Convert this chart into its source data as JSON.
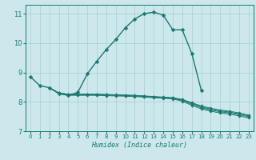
{
  "xlabel": "Humidex (Indice chaleur)",
  "xlim": [
    -0.5,
    23.5
  ],
  "ylim": [
    7.0,
    11.3
  ],
  "yticks": [
    7,
    8,
    9,
    10,
    11
  ],
  "xticks": [
    0,
    1,
    2,
    3,
    4,
    5,
    6,
    7,
    8,
    9,
    10,
    11,
    12,
    13,
    14,
    15,
    16,
    17,
    18,
    19,
    20,
    21,
    22,
    23
  ],
  "background_color": "#cce8ec",
  "grid_color": "#aacccc",
  "line_color": "#1a7a6e",
  "lines": [
    {
      "x": [
        0,
        1,
        2,
        3,
        4,
        5,
        6,
        7,
        8,
        9,
        10,
        11,
        12,
        13,
        14,
        15,
        16,
        17,
        18
      ],
      "y": [
        8.85,
        8.55,
        8.48,
        8.28,
        8.22,
        8.32,
        8.95,
        9.38,
        9.78,
        10.12,
        10.52,
        10.82,
        11.0,
        11.05,
        10.95,
        10.45,
        10.45,
        9.65,
        8.4
      ]
    },
    {
      "x": [
        2,
        3,
        4,
        5,
        6,
        7,
        8,
        9,
        10,
        11,
        12,
        13,
        14,
        15,
        16,
        17,
        18,
        19,
        20,
        21,
        22,
        23
      ],
      "y": [
        8.48,
        8.28,
        8.22,
        8.22,
        8.22,
        8.22,
        8.21,
        8.2,
        8.19,
        8.18,
        8.16,
        8.14,
        8.12,
        8.1,
        8.02,
        7.88,
        7.76,
        7.68,
        7.62,
        7.58,
        7.52,
        7.45
      ]
    },
    {
      "x": [
        2,
        3,
        4,
        5,
        6,
        7,
        8,
        9,
        10,
        11,
        12,
        13,
        14,
        15,
        16,
        17,
        18,
        19,
        20,
        21,
        22,
        23
      ],
      "y": [
        8.48,
        8.3,
        8.24,
        8.24,
        8.24,
        8.24,
        8.23,
        8.22,
        8.21,
        8.2,
        8.18,
        8.16,
        8.14,
        8.12,
        8.05,
        7.92,
        7.8,
        7.72,
        7.66,
        7.62,
        7.56,
        7.49
      ]
    },
    {
      "x": [
        2,
        3,
        4,
        5,
        6,
        7,
        8,
        9,
        10,
        11,
        12,
        13,
        14,
        15,
        16,
        17,
        18,
        19,
        20,
        21,
        22,
        23
      ],
      "y": [
        8.48,
        8.3,
        8.25,
        8.25,
        8.25,
        8.25,
        8.24,
        8.23,
        8.22,
        8.21,
        8.19,
        8.17,
        8.15,
        8.13,
        8.07,
        7.95,
        7.83,
        7.75,
        7.69,
        7.65,
        7.59,
        7.52
      ]
    },
    {
      "x": [
        2,
        3,
        4,
        5,
        6,
        7,
        8,
        9,
        10,
        11,
        12,
        13,
        14,
        15,
        16,
        17,
        18,
        19,
        20,
        21,
        22,
        23
      ],
      "y": [
        8.48,
        8.3,
        8.26,
        8.26,
        8.26,
        8.26,
        8.25,
        8.24,
        8.23,
        8.22,
        8.2,
        8.18,
        8.16,
        8.14,
        8.08,
        7.97,
        7.86,
        7.78,
        7.72,
        7.68,
        7.62,
        7.55
      ]
    }
  ]
}
